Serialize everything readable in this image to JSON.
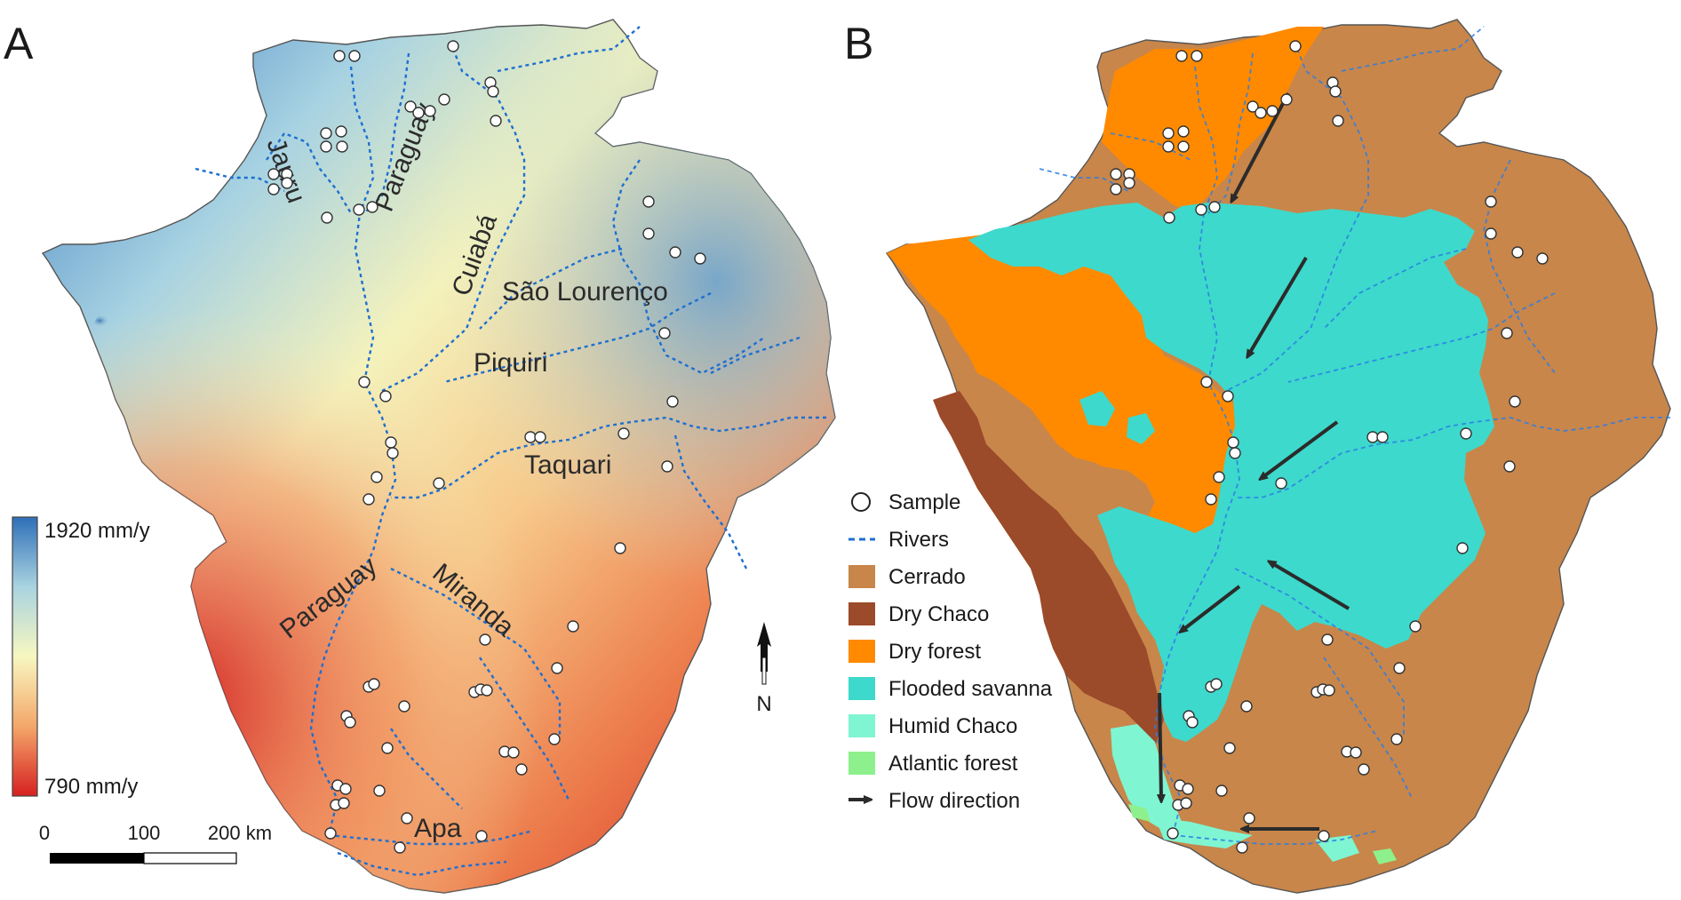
{
  "panel_a": {
    "letter": "A",
    "river_labels": [
      "Jauru",
      "Paraguay",
      "Cuiabá",
      "São Lourenço",
      "Piquiri",
      "Taquari",
      "Paraguay",
      "Miranda",
      "Apa"
    ],
    "colorbar": {
      "max_label": "1920 mm/y",
      "min_label": "790 mm/y",
      "colors": [
        "#2f6fb8",
        "#a9d3e0",
        "#f7f7c0",
        "#f4a76a",
        "#d62020"
      ]
    },
    "scalebar": {
      "tick_0": "0",
      "tick_1": "100",
      "tick_2": "200 km"
    },
    "north_label": "N"
  },
  "panel_b": {
    "letter": "B",
    "legend": {
      "sample": "Sample",
      "rivers": "Rivers",
      "cerrado": "Cerrado",
      "dry_chaco": "Dry Chaco",
      "dry_forest": "Dry forest",
      "flooded_savanna": "Flooded savanna",
      "humid_chaco": "Humid Chaco",
      "atlantic_forest": "Atlantic forest",
      "flow_direction": "Flow direction"
    },
    "colors": {
      "cerrado": "#c8864a",
      "dry_chaco": "#9b4a2a",
      "dry_forest": "#ff8a00",
      "flooded_savanna": "#3dd9cc",
      "humid_chaco": "#7ff5d2",
      "atlantic_forest": "#8ef08c"
    }
  }
}
